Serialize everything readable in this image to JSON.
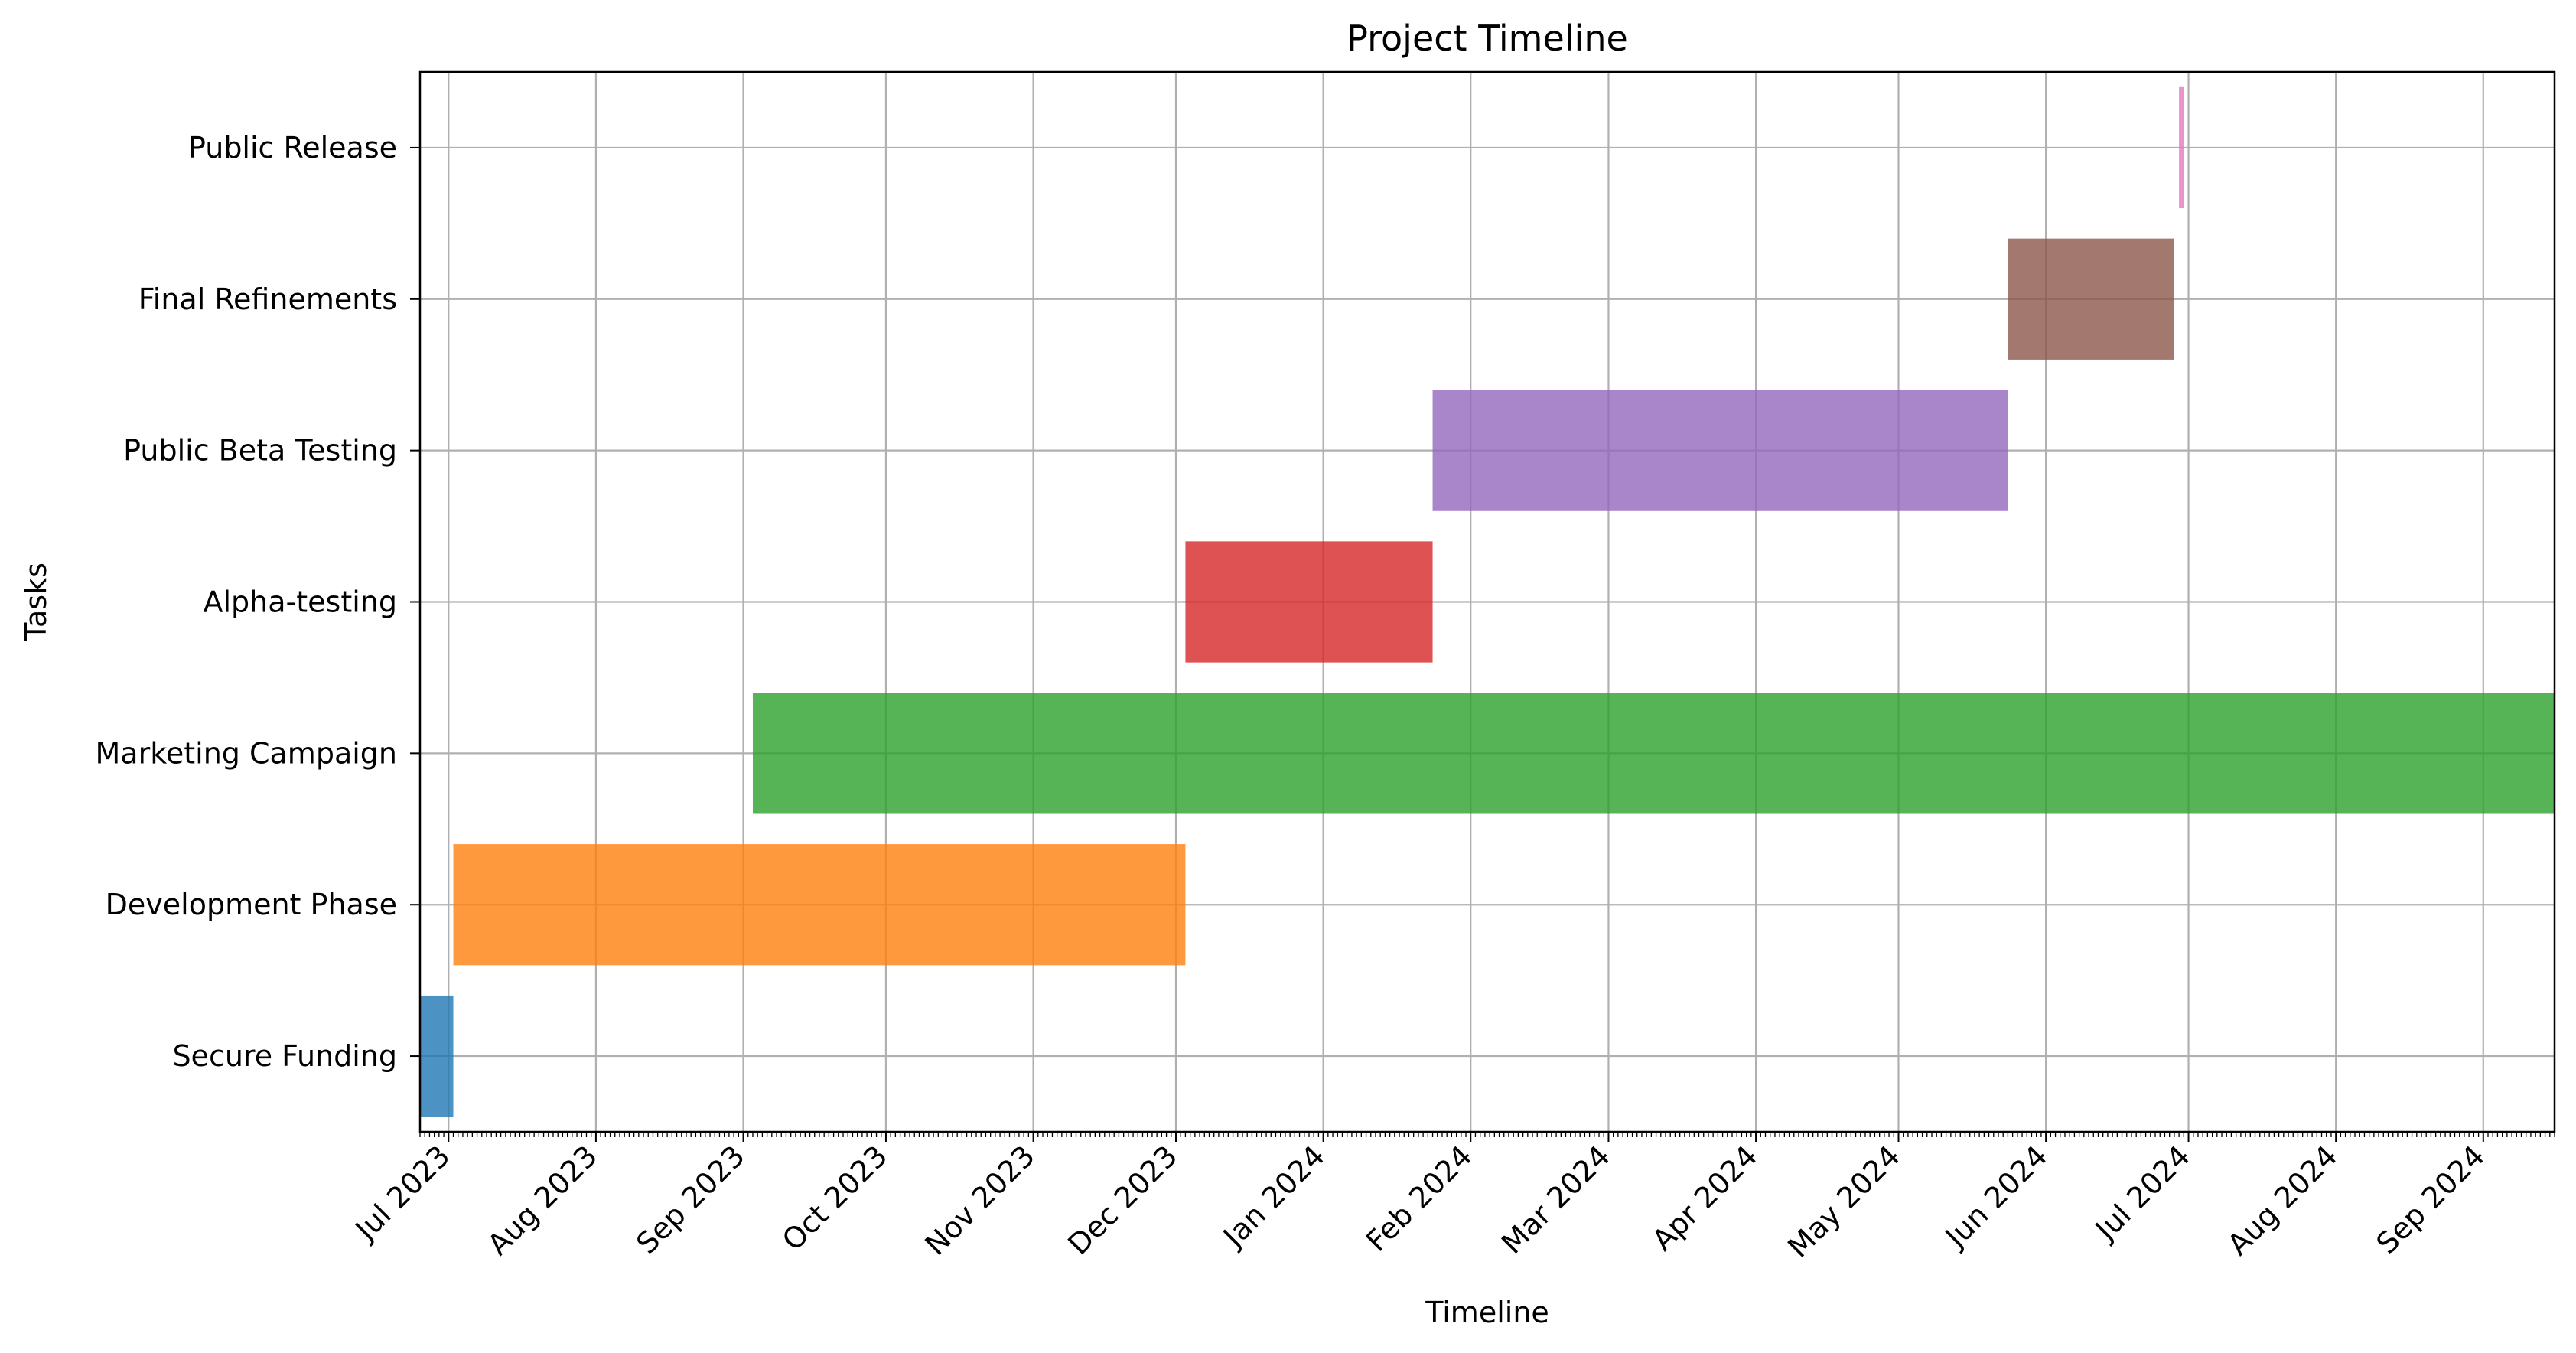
{
  "chart_data": {
    "type": "gantt",
    "title": "Project Timeline",
    "xlabel": "Timeline",
    "ylabel": "Tasks",
    "x_range": [
      "2023-06-25",
      "2024-09-16"
    ],
    "grid": true,
    "x_ticks": [
      {
        "date": "2023-07-01",
        "label": "Jul 2023"
      },
      {
        "date": "2023-08-01",
        "label": "Aug 2023"
      },
      {
        "date": "2023-09-01",
        "label": "Sep 2023"
      },
      {
        "date": "2023-10-01",
        "label": "Oct 2023"
      },
      {
        "date": "2023-11-01",
        "label": "Nov 2023"
      },
      {
        "date": "2023-12-01",
        "label": "Dec 2023"
      },
      {
        "date": "2024-01-01",
        "label": "Jan 2024"
      },
      {
        "date": "2024-02-01",
        "label": "Feb 2024"
      },
      {
        "date": "2024-03-01",
        "label": "Mar 2024"
      },
      {
        "date": "2024-04-01",
        "label": "Apr 2024"
      },
      {
        "date": "2024-05-01",
        "label": "May 2024"
      },
      {
        "date": "2024-06-01",
        "label": "Jun 2024"
      },
      {
        "date": "2024-07-01",
        "label": "Jul 2024"
      },
      {
        "date": "2024-08-01",
        "label": "Aug 2024"
      },
      {
        "date": "2024-09-01",
        "label": "Sep 2024"
      }
    ],
    "tasks": [
      {
        "name": "Secure Funding",
        "start": "2023-06-25",
        "end": "2023-07-02",
        "color": "#1f77b4"
      },
      {
        "name": "Development Phase",
        "start": "2023-07-02",
        "end": "2023-12-03",
        "color": "#ff7f0e"
      },
      {
        "name": "Marketing Campaign",
        "start": "2023-09-03",
        "end": "2024-09-16",
        "color": "#2ca02c"
      },
      {
        "name": "Alpha-testing",
        "start": "2023-12-03",
        "end": "2024-01-24",
        "color": "#d62728"
      },
      {
        "name": "Public Beta Testing",
        "start": "2024-01-24",
        "end": "2024-05-24",
        "color": "#9467bd"
      },
      {
        "name": "Final Refinements",
        "start": "2024-05-24",
        "end": "2024-06-28",
        "color": "#8c564b"
      },
      {
        "name": "Public Release",
        "start": "2024-06-29",
        "end": "2024-06-30",
        "color": "#e377c2"
      }
    ]
  }
}
